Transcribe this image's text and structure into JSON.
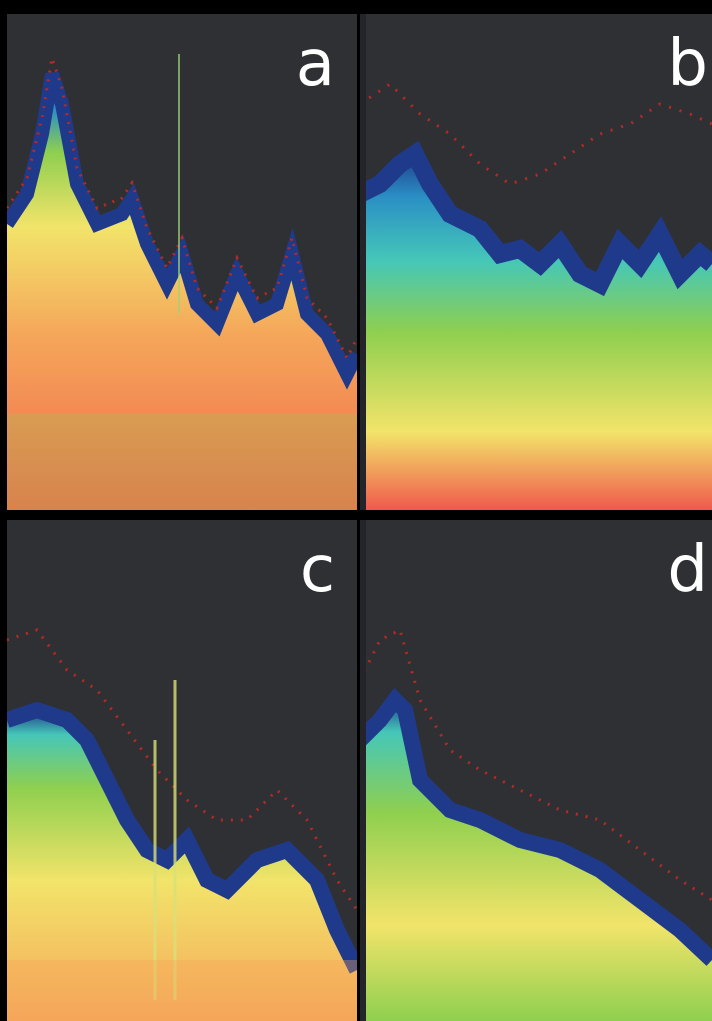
{
  "figure": {
    "panels": [
      {
        "id": "a",
        "label": "a"
      },
      {
        "id": "b",
        "label": "b"
      },
      {
        "id": "c",
        "label": "c"
      },
      {
        "id": "d",
        "label": "d"
      }
    ]
  },
  "colors": {
    "page_background": "#000000",
    "panel_background": "#2f3033",
    "label": "#ffffff",
    "colormap": [
      "#2f3033",
      "#b52a26",
      "#1f3a8a",
      "#2a8fc4",
      "#45c7b8",
      "#8fcf4f",
      "#f2e46a",
      "#f5a65a",
      "#ef5a4c"
    ]
  }
}
